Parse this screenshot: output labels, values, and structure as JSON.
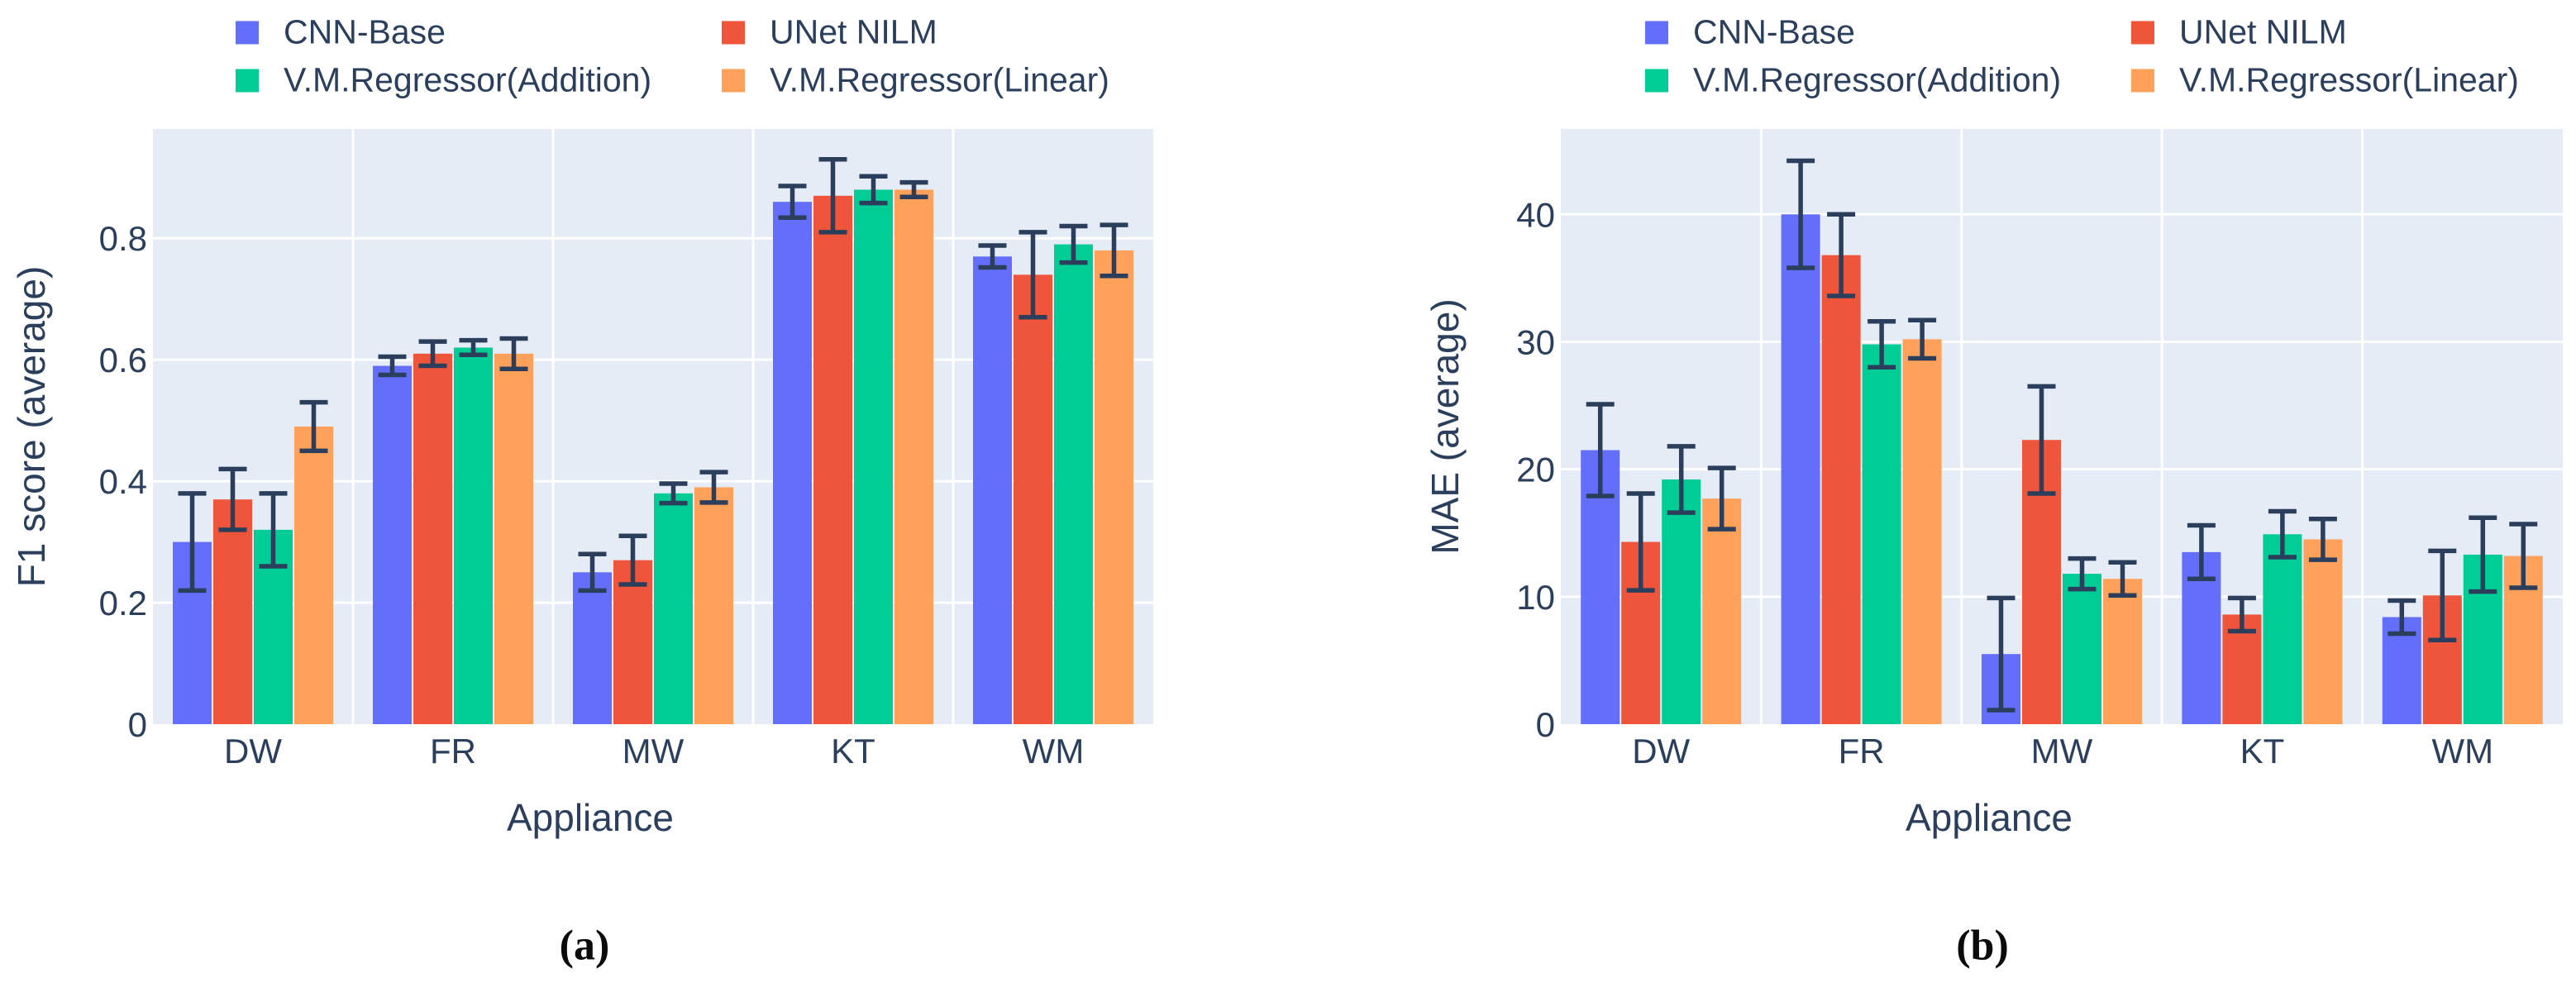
{
  "theme": {
    "page_bg": "#ffffff",
    "plot_bg": "#e5ecf6",
    "grid_color": "#ffffff",
    "text_color": "#2b3f5c",
    "error_bar_color": "#2b3f5c",
    "series_colors": [
      "#636efa",
      "#ef553b",
      "#00cc96",
      "#ffa15a"
    ]
  },
  "figure": {
    "captions": [
      "(a)",
      "(b)"
    ]
  },
  "chart_data": [
    {
      "type": "bar",
      "title": "",
      "xlabel": "Appliance",
      "ylabel": "F1 score (average)",
      "categories": [
        "DW",
        "FR",
        "MW",
        "KT",
        "WM"
      ],
      "ylim": [
        0,
        0.98
      ],
      "yticks": [
        0,
        0.2,
        0.4,
        0.6,
        0.8
      ],
      "ytick_labels": [
        "0",
        "0.2",
        "0.4",
        "0.6",
        "0.8"
      ],
      "grid": true,
      "legend_position": "top",
      "error_bars": true,
      "series": [
        {
          "name": "CNN-Base",
          "color": "#636efa",
          "values": [
            0.3,
            0.59,
            0.25,
            0.86,
            0.77
          ],
          "errors": [
            0.08,
            0.015,
            0.03,
            0.026,
            0.018
          ]
        },
        {
          "name": "UNet NILM",
          "color": "#ef553b",
          "values": [
            0.37,
            0.61,
            0.27,
            0.87,
            0.74
          ],
          "errors": [
            0.05,
            0.02,
            0.04,
            0.06,
            0.07
          ]
        },
        {
          "name": "V.M.Regressor(Addition)",
          "color": "#00cc96",
          "values": [
            0.32,
            0.62,
            0.38,
            0.88,
            0.79
          ],
          "errors": [
            0.06,
            0.012,
            0.016,
            0.022,
            0.03
          ]
        },
        {
          "name": "V.M.Regressor(Linear)",
          "color": "#ffa15a",
          "values": [
            0.49,
            0.61,
            0.39,
            0.88,
            0.78
          ],
          "errors": [
            0.04,
            0.025,
            0.025,
            0.012,
            0.042
          ]
        }
      ]
    },
    {
      "type": "bar",
      "title": "",
      "xlabel": "Appliance",
      "ylabel": "MAE (average)",
      "categories": [
        "DW",
        "FR",
        "MW",
        "KT",
        "WM"
      ],
      "ylim": [
        0,
        46.7
      ],
      "yticks": [
        0,
        10,
        20,
        30,
        40
      ],
      "ytick_labels": [
        "0",
        "10",
        "20",
        "30",
        "40"
      ],
      "grid": true,
      "legend_position": "top",
      "error_bars": true,
      "series": [
        {
          "name": "CNN-Base",
          "color": "#636efa",
          "values": [
            21.5,
            40.0,
            5.5,
            13.5,
            8.4
          ],
          "errors": [
            3.6,
            4.2,
            4.4,
            2.1,
            1.3
          ]
        },
        {
          "name": "UNet NILM",
          "color": "#ef553b",
          "values": [
            14.3,
            36.8,
            22.3,
            8.6,
            10.1
          ],
          "errors": [
            3.8,
            3.2,
            4.2,
            1.3,
            3.5
          ]
        },
        {
          "name": "V.M.Regressor(Addition)",
          "color": "#00cc96",
          "values": [
            19.2,
            29.8,
            11.8,
            14.9,
            13.3
          ],
          "errors": [
            2.6,
            1.8,
            1.2,
            1.8,
            2.9
          ]
        },
        {
          "name": "V.M.Regressor(Linear)",
          "color": "#ffa15a",
          "values": [
            17.7,
            30.2,
            11.4,
            14.5,
            13.2
          ],
          "errors": [
            2.4,
            1.5,
            1.3,
            1.6,
            2.5
          ]
        }
      ]
    }
  ]
}
